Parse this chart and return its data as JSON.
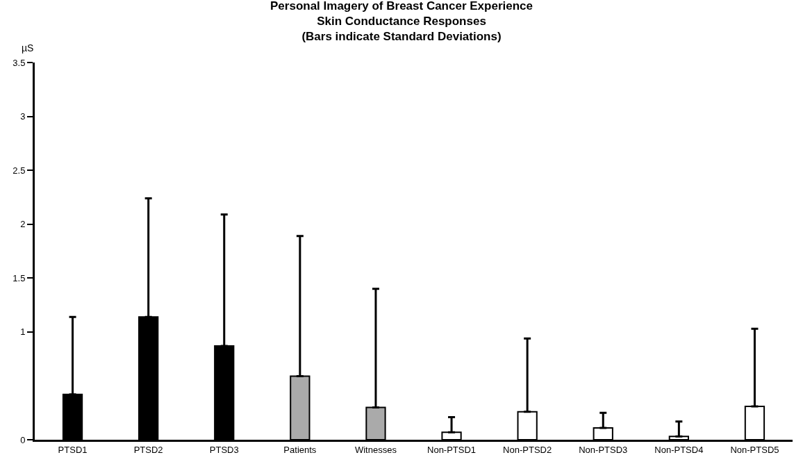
{
  "chart_data": {
    "type": "bar",
    "title": "Personal Imagery of Breast Cancer Experience\nSkin Conductance Responses\n(Bars indicate Standard Deviations)",
    "ylabel": "µS",
    "categories": [
      "PTSD1",
      "PTSD2",
      "PTSD3",
      "Patients",
      "Witnesses",
      "Non-PTSD1",
      "Non-PTSD2",
      "Non-PTSD3",
      "Non-PTSD4",
      "Non-PTSD5"
    ],
    "values": [
      0.42,
      1.14,
      0.87,
      0.59,
      0.3,
      0.07,
      0.26,
      0.11,
      0.03,
      0.31
    ],
    "colors": [
      "#000000",
      "#000000",
      "#000000",
      "#aaaaaa",
      "#aaaaaa",
      "#ffffff",
      "#ffffff",
      "#ffffff",
      "#ffffff",
      "#ffffff"
    ],
    "errors": [
      [
        0.42,
        1.14
      ],
      [
        1.14,
        2.24
      ],
      [
        0.87,
        2.09
      ],
      [
        0.59,
        1.89
      ],
      [
        0.3,
        1.4
      ],
      [
        0.07,
        0.21
      ],
      [
        0.26,
        0.94
      ],
      [
        0.11,
        0.25
      ],
      [
        0.03,
        0.17
      ],
      [
        0.31,
        1.03
      ]
    ],
    "ylim": [
      0,
      3.5
    ],
    "yticks": [
      0,
      1,
      1.5,
      2,
      2.5,
      3,
      3.5
    ]
  }
}
